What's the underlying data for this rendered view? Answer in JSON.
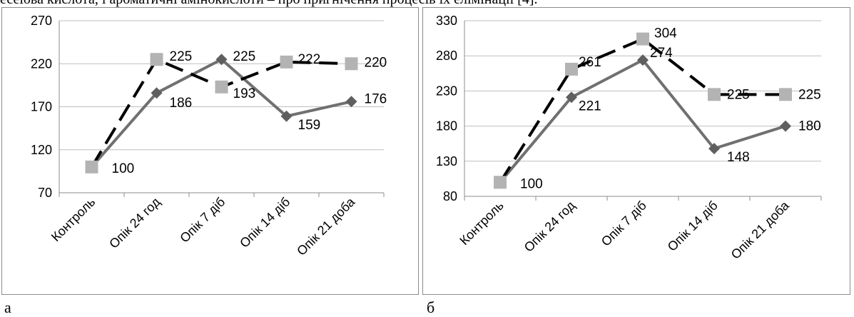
{
  "top_text": "есеїова кислота, і ароматичні амінокислоти – про пригнічення процесів їх елімінації [4].",
  "panels": [
    {
      "caption": "а"
    },
    {
      "caption": "б"
    }
  ],
  "colors": {
    "series_dashed": "#000000",
    "series_solid": "#707070",
    "marker_square": "#b3b3b3",
    "marker_diamond": "#5f5f5f",
    "grid": "#bfbfbf",
    "axis": "#8c8c8c"
  },
  "chart_data": [
    {
      "type": "line",
      "categories": [
        "Контроль",
        "Опік 24 год",
        "Опік 7 діб",
        "Опік 14 діб",
        "Опік 21 доба"
      ],
      "ylim": [
        70,
        270
      ],
      "yticks": [
        70,
        120,
        170,
        220,
        270
      ],
      "grid": true,
      "series": [
        {
          "style": "dashed",
          "marker": "square",
          "values": [
            100,
            225,
            193,
            222,
            220
          ]
        },
        {
          "style": "solid",
          "marker": "diamond",
          "values": [
            100,
            186,
            225,
            159,
            176
          ]
        }
      ]
    },
    {
      "type": "line",
      "categories": [
        "Контроль",
        "Опік 24 год",
        "Опік 7 діб",
        "Опік 14 діб",
        "Опік 21 доба"
      ],
      "ylim": [
        80,
        330
      ],
      "yticks": [
        80,
        130,
        180,
        230,
        280,
        330
      ],
      "grid": true,
      "series": [
        {
          "style": "dashed",
          "marker": "square",
          "values": [
            100,
            261,
            304,
            225,
            225
          ]
        },
        {
          "style": "solid",
          "marker": "diamond",
          "values": [
            100,
            221,
            274,
            148,
            180
          ]
        }
      ]
    }
  ]
}
